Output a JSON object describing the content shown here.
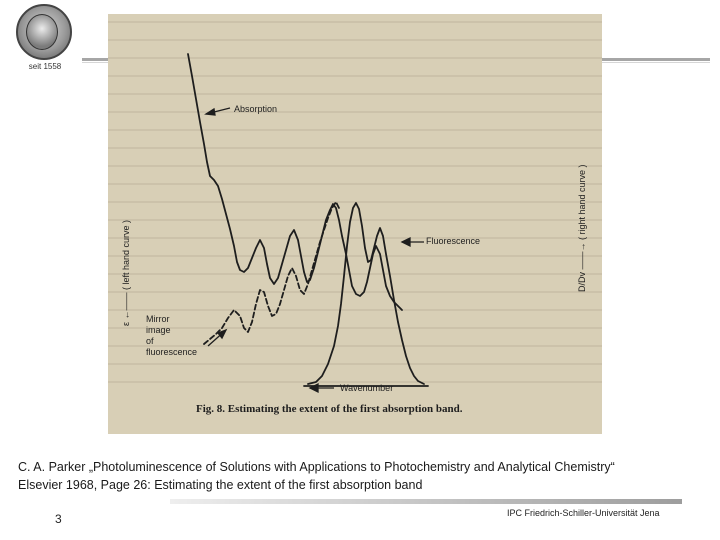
{
  "logo": {
    "since_text": "seit 1558"
  },
  "figure": {
    "label_absorption": "Absorption",
    "label_fluorescence": "Fluorescence",
    "label_mirror_1": "Mirror",
    "label_mirror_2": "image",
    "label_mirror_3": "of",
    "label_mirror_4": "fluorescence",
    "label_wavenumber": "Wavenumber",
    "label_left_axis": "ε  ←——  ( left hand curve )",
    "label_right_axis": "D/Dv  ——→  ( right hand curve )",
    "caption": "Fig. 8.  Estimating the extent of the first absorption band."
  },
  "caption": {
    "line1": "C. A. Parker „Photoluminescence of Solutions with Applications to Photochemistry and Analytical Chemistry“",
    "line2": "Elsevier 1968, Page 26: Estimating the extent of the first absorption band"
  },
  "footer": {
    "page_number": "3",
    "institute": "IPC Friedrich-Schiller-Universität Jena"
  }
}
